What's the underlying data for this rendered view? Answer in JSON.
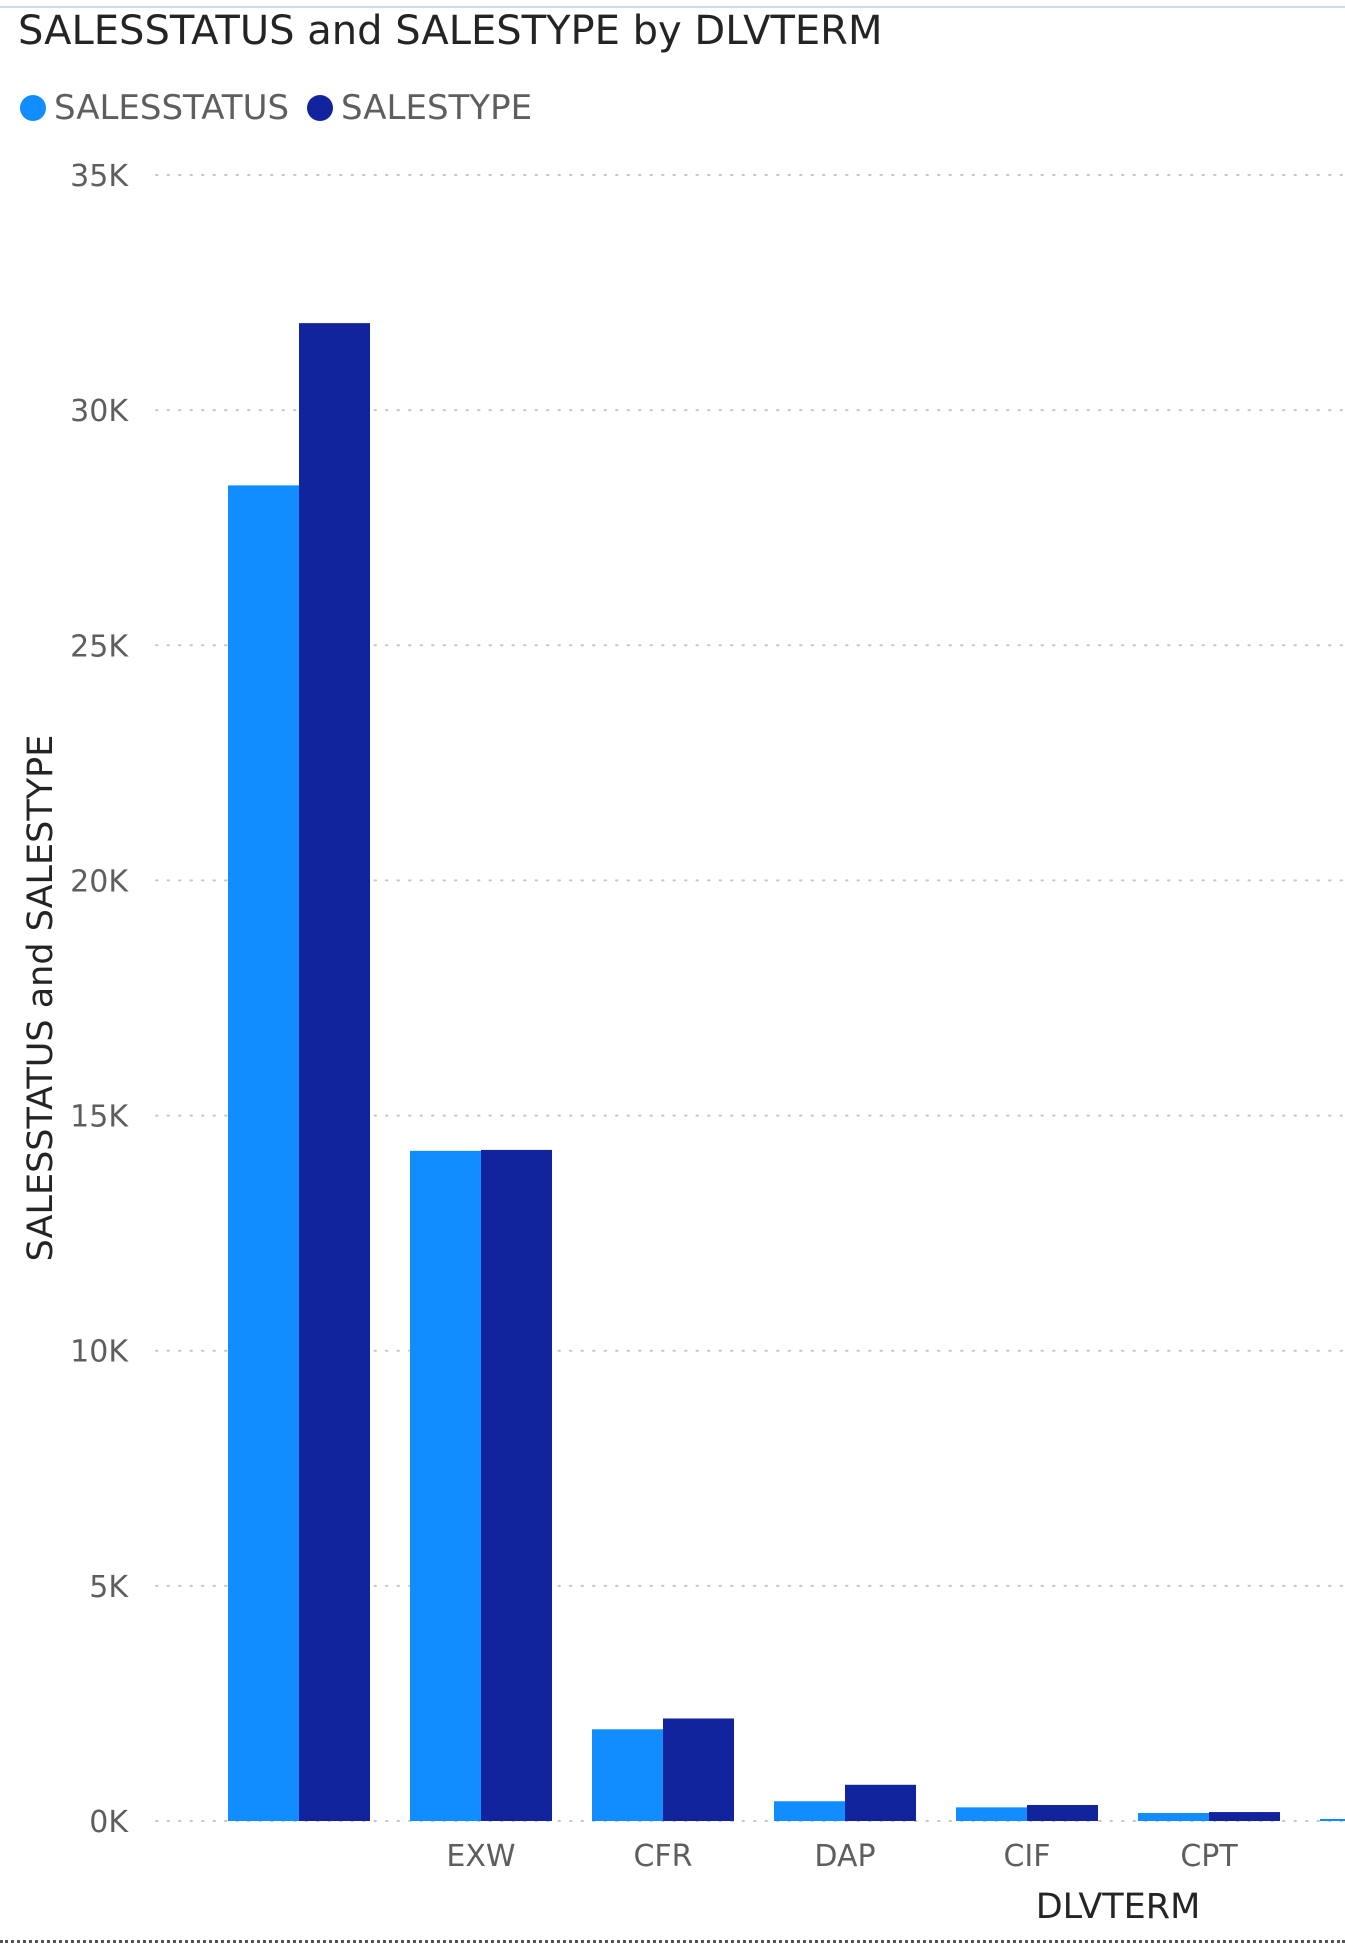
{
  "chart_data": {
    "type": "bar",
    "title": "SALESSTATUS and SALESTYPE by DLVTERM",
    "xlabel": "DLVTERM",
    "ylabel": "SALESSTATUS and SALESTYPE",
    "ylim": [
      0,
      35000
    ],
    "yticks": [
      {
        "value": 0,
        "label": "0K"
      },
      {
        "value": 5000,
        "label": "5K"
      },
      {
        "value": 10000,
        "label": "10K"
      },
      {
        "value": 15000,
        "label": "15K"
      },
      {
        "value": 20000,
        "label": "20K"
      },
      {
        "value": 25000,
        "label": "25K"
      },
      {
        "value": 30000,
        "label": "30K"
      },
      {
        "value": 35000,
        "label": "35K"
      }
    ],
    "categories": [
      "",
      "EXW",
      "CFR",
      "DAP",
      "CIF",
      "CPT",
      ""
    ],
    "series": [
      {
        "name": "SALESSTATUS",
        "color": "#118dff",
        "values": [
          28400,
          14250,
          1950,
          420,
          290,
          170,
          40
        ]
      },
      {
        "name": "SALESTYPE",
        "color": "#12239e",
        "values": [
          31850,
          14270,
          2180,
          770,
          340,
          190,
          null
        ]
      }
    ],
    "grid": true,
    "legend": "top-left"
  }
}
